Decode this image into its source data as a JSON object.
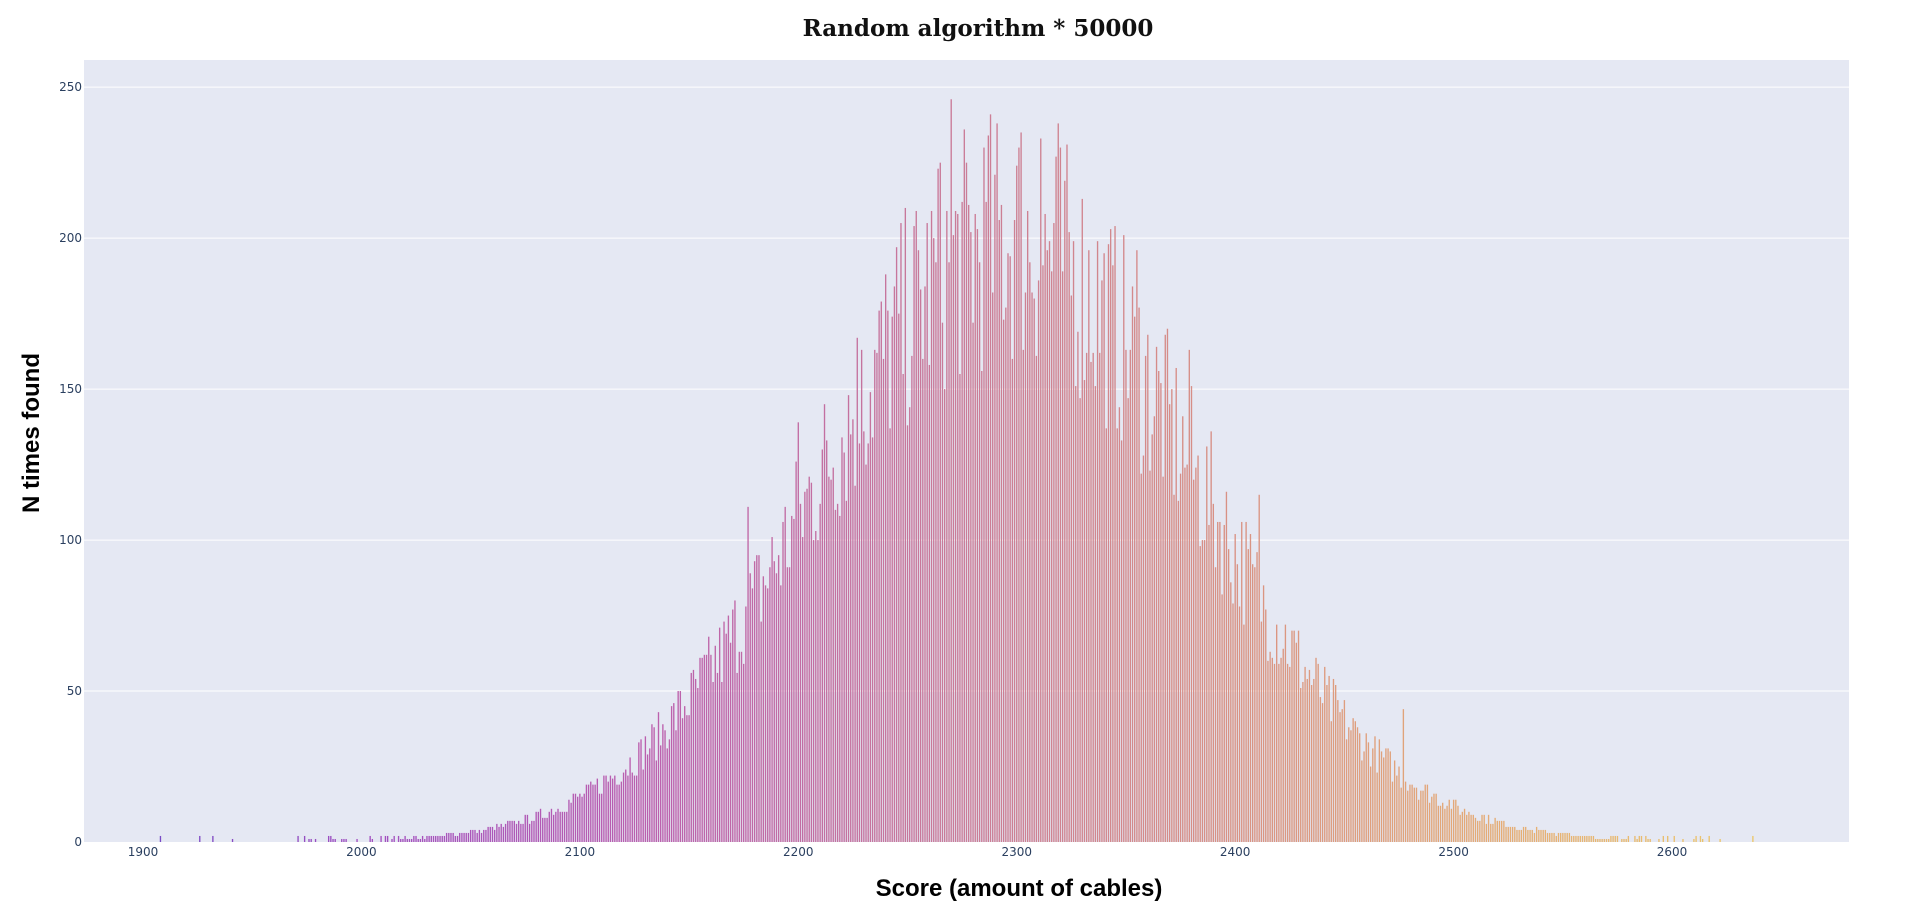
{
  "chart_data": {
    "type": "bar",
    "title": "Random algorithm * 50000",
    "xlabel": "Score (amount of cables)",
    "ylabel": "N times found",
    "xlim": [
      1873,
      2681
    ],
    "ylim": [
      0,
      259
    ],
    "xticks": [
      "1900",
      "2000",
      "2100",
      "2200",
      "2300",
      "2400",
      "2500",
      "2600"
    ],
    "yticks": [
      "0",
      "50",
      "100",
      "150",
      "200",
      "250"
    ],
    "grid": true,
    "legend": "none",
    "colorscale": [
      "#6a4ac8",
      "#a14fc0",
      "#bb5fae",
      "#c8789a",
      "#d78f86",
      "#e4aa76",
      "#ecc86a"
    ],
    "background": "#e5e8f3",
    "distribution": {
      "x_start": 1873,
      "x_end": 2640,
      "mean": 2296,
      "sd": 86,
      "peak": 200,
      "noise": 0.11,
      "seed": 7
    },
    "notable_points": [
      {
        "x": 1908,
        "y": 2
      },
      {
        "x": 2270,
        "y": 246
      },
      {
        "x": 2319,
        "y": 238
      },
      {
        "x": 2302,
        "y": 235
      },
      {
        "x": 2311,
        "y": 233
      },
      {
        "x": 2287,
        "y": 234
      },
      {
        "x": 2264,
        "y": 223
      },
      {
        "x": 2200,
        "y": 139
      },
      {
        "x": 2177,
        "y": 111
      },
      {
        "x": 2229,
        "y": 163
      },
      {
        "x": 2355,
        "y": 196
      },
      {
        "x": 2379,
        "y": 163
      },
      {
        "x": 2411,
        "y": 115
      },
      {
        "x": 2477,
        "y": 44
      }
    ]
  }
}
